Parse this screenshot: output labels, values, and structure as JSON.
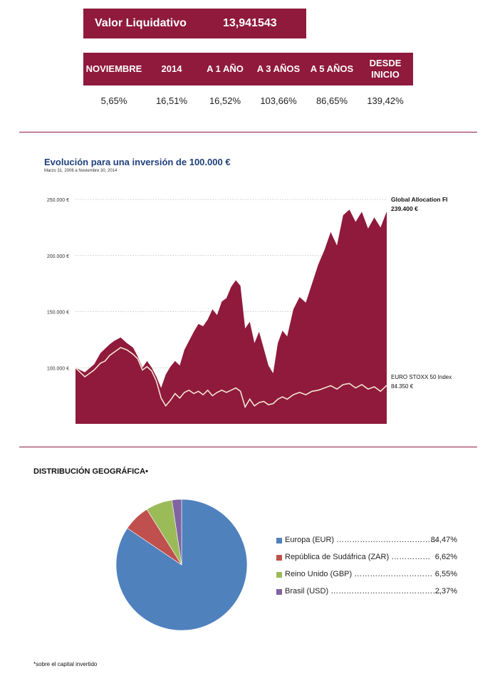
{
  "nav": {
    "label": "Valor Liquidativo",
    "value": "13,941543"
  },
  "returns": {
    "headers": [
      "NOVIEMBRE",
      "2014",
      "A 1 AÑO",
      "A 3 AÑOS",
      "A 5 AÑOS",
      "DESDE INICIO"
    ],
    "values": [
      "5,65%",
      "16,51%",
      "16,52%",
      "103,66%",
      "86,65%",
      "139,42%"
    ]
  },
  "chart_data": [
    {
      "type": "area",
      "title": "Evolución para una inversión de 100.000 €",
      "subtitle": "Marzo 31, 2006 a Noviembre 30, 2014",
      "xlabel": "",
      "ylabel": "",
      "ylim": [
        50000,
        260000
      ],
      "y_ticks": [
        "250.000 €",
        "200.000 €",
        "150.000 €",
        "100.000 €"
      ],
      "y_tick_values": [
        250000,
        200000,
        150000,
        100000
      ],
      "grid": true,
      "x_index": [
        0,
        30,
        60,
        80,
        95,
        110,
        125,
        145,
        165,
        185,
        200,
        215,
        230,
        245,
        260,
        275,
        290,
        305,
        320,
        335,
        350,
        365,
        380,
        395,
        410,
        425,
        440,
        455,
        470,
        485,
        500,
        515,
        530,
        545,
        560,
        575,
        590,
        605,
        620,
        635,
        650,
        665,
        680,
        700,
        720,
        740,
        760,
        780,
        800,
        820,
        840,
        860,
        880,
        900,
        920,
        940,
        960,
        980,
        1000
      ],
      "series": [
        {
          "name": "Global Allocation FI",
          "end_label": "239.400 €",
          "color": "#8f1a3c",
          "values": [
            100000,
            96000,
            103000,
            113000,
            117000,
            121000,
            124000,
            127000,
            122000,
            118000,
            110000,
            100000,
            106000,
            100000,
            92000,
            82000,
            94000,
            101000,
            106000,
            102000,
            116000,
            124000,
            132000,
            139000,
            137000,
            143000,
            152000,
            147000,
            159000,
            162000,
            172000,
            178000,
            173000,
            135000,
            141000,
            122000,
            132000,
            117000,
            102000,
            95000,
            122000,
            133000,
            128000,
            152000,
            163000,
            158000,
            175000,
            192000,
            205000,
            221000,
            209000,
            236000,
            241000,
            230000,
            239000,
            224000,
            234000,
            225000,
            239400
          ]
        },
        {
          "name": "EURO STOXX 50 Index",
          "end_label": "84.350 €",
          "color": "#f3e4d2",
          "values": [
            100000,
            92000,
            98000,
            104000,
            106000,
            111000,
            114000,
            118000,
            116000,
            112000,
            108000,
            98000,
            101000,
            97000,
            88000,
            73000,
            66000,
            71000,
            77000,
            73000,
            78000,
            80000,
            77000,
            79000,
            76000,
            80000,
            75000,
            78000,
            80000,
            78000,
            80000,
            82000,
            79000,
            65000,
            72000,
            66000,
            69000,
            70000,
            67000,
            68000,
            72000,
            74000,
            72000,
            76000,
            78000,
            76000,
            79000,
            80000,
            82000,
            84000,
            81000,
            85000,
            86000,
            82000,
            85000,
            81000,
            83000,
            79000,
            84350
          ]
        }
      ]
    },
    {
      "type": "pie",
      "title": "DISTRIBUCIÓN GEOGRÁFICA",
      "title_mark": "•",
      "slices": [
        {
          "label": "Europa (EUR)",
          "leader": "…………………………………",
          "value": 84.47,
          "value_label": "84,47%",
          "color": "#4f81bd"
        },
        {
          "label": "República de Sudáfrica (ZAR)",
          "leader": "……………",
          "value": 6.62,
          "value_label": "6,62%",
          "color": "#c0504d"
        },
        {
          "label": "Reino Unido (GBP)",
          "leader": "…………………………",
          "value": 6.55,
          "value_label": "6,55%",
          "color": "#9bbb59"
        },
        {
          "label": "Brasil (USD)",
          "leader": "……………………………………",
          "value": 2.37,
          "value_label": "2,37%",
          "color": "#8064a2"
        }
      ]
    }
  ],
  "footnote": "*sobre el capital invertido"
}
